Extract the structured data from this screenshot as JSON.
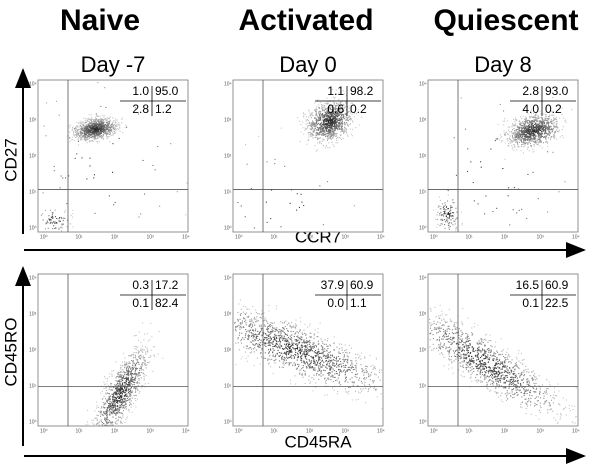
{
  "columns": [
    {
      "title": "Naive",
      "day": "Day -7"
    },
    {
      "title": "Activated",
      "day": "Day 0"
    },
    {
      "title": "Quiescent",
      "day": "Day 8"
    }
  ],
  "rows": [
    {
      "y_label": "CD27",
      "x_label": "CCR7",
      "panels": [
        {
          "quadrants": [
            "1.0",
            "95.0",
            "2.8",
            "1.2"
          ]
        },
        {
          "quadrants": [
            "1.1",
            "98.2",
            "0.6",
            "0.2"
          ]
        },
        {
          "quadrants": [
            "2.8",
            "93.0",
            "4.0",
            "0.2"
          ]
        }
      ]
    },
    {
      "y_label": "CD45RO",
      "x_label": "CD45RA",
      "panels": [
        {
          "quadrants": [
            "0.3",
            "17.2",
            "0.1",
            "82.4"
          ]
        },
        {
          "quadrants": [
            "37.9",
            "60.9",
            "0.0",
            "1.1"
          ]
        },
        {
          "quadrants": [
            "16.5",
            "60.9",
            "0.1",
            "22.5"
          ]
        }
      ]
    }
  ],
  "axis_tick_labels": [
    "10⁰",
    "10¹",
    "10²",
    "10³",
    "10⁴"
  ]
}
